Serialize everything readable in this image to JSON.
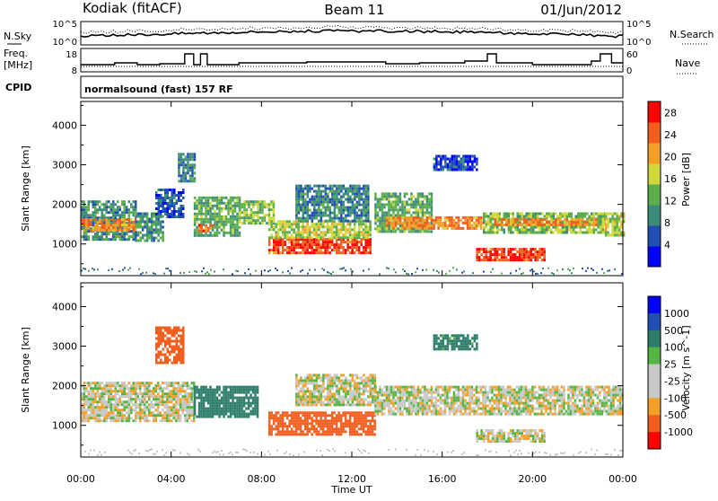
{
  "header": {
    "radar": "Kodiak (fitACF)",
    "beam": "Beam 11",
    "date": "01/Jun/2012"
  },
  "top_panels": {
    "nsky_label": "N.Sky",
    "nsearch_label": "N.Search",
    "noise_ticks_left": [
      "10^5",
      "10^0"
    ],
    "noise_ticks_right": [
      "10^5",
      "10^0"
    ],
    "freq_label_1": "Freq.",
    "freq_label_2": "[MHz]",
    "freq_ticks": [
      "18",
      "8"
    ],
    "nave_label": "Nave",
    "nave_ticks": [
      "60",
      "0"
    ],
    "cpid_label": "CPID",
    "cpid_text": "normalsound (fast) 157 RF"
  },
  "colors": {
    "power_scale": [
      "#0000ff",
      "#1f4fb4",
      "#3b8c78",
      "#5cae4a",
      "#cfd83c",
      "#f3a02a",
      "#f35d1d",
      "#ff0000"
    ],
    "velocity_scale": [
      "#ff0000",
      "#f35d1d",
      "#f3a02a",
      "#c8c8c8",
      "#c8c8c8",
      "#55b544",
      "#2e7d6a",
      "#1f4fb4",
      "#0000ff"
    ]
  },
  "chart_data": [
    {
      "type": "heatmap",
      "name": "power",
      "xlabel": "Time UT",
      "ylabel": "Slant Range [km]",
      "x_ticks": [
        "00:00",
        "04:00",
        "08:00",
        "12:00",
        "16:00",
        "20:00",
        "00:00"
      ],
      "y_ticks": [
        1000,
        2000,
        3000,
        4000
      ],
      "ylim": [
        200,
        4600
      ],
      "xlim_hours": [
        0,
        24
      ],
      "colorbar_label": "Power [dB]",
      "colorbar_ticks": [
        4,
        8,
        12,
        16,
        20,
        24,
        28
      ],
      "colorbar_range": [
        0,
        30
      ],
      "regions": [
        {
          "t0": 0.0,
          "t1": 2.4,
          "r0": 1100,
          "r1": 2100,
          "level": 10
        },
        {
          "t0": 0.0,
          "t1": 2.4,
          "r0": 1350,
          "r1": 1650,
          "level": 22
        },
        {
          "t0": 2.4,
          "t1": 3.6,
          "r0": 1100,
          "r1": 1800,
          "level": 10
        },
        {
          "t0": 3.3,
          "t1": 4.5,
          "r0": 1700,
          "r1": 2400,
          "level": 6
        },
        {
          "t0": 4.3,
          "t1": 5.0,
          "r0": 2600,
          "r1": 3300,
          "level": 8
        },
        {
          "t0": 5.0,
          "t1": 7.0,
          "r0": 1200,
          "r1": 2200,
          "level": 12
        },
        {
          "t0": 5.2,
          "t1": 5.8,
          "r0": 1300,
          "r1": 1500,
          "level": 24
        },
        {
          "t0": 7.0,
          "t1": 8.5,
          "r0": 1500,
          "r1": 2100,
          "level": 14
        },
        {
          "t0": 8.3,
          "t1": 12.8,
          "r0": 800,
          "r1": 1150,
          "level": 26
        },
        {
          "t0": 8.3,
          "t1": 12.8,
          "r0": 1150,
          "r1": 1600,
          "level": 16
        },
        {
          "t0": 9.5,
          "t1": 12.7,
          "r0": 1600,
          "r1": 2500,
          "level": 9
        },
        {
          "t0": 13.0,
          "t1": 15.5,
          "r0": 1300,
          "r1": 2300,
          "level": 12
        },
        {
          "t0": 13.5,
          "t1": 17.8,
          "r0": 1400,
          "r1": 1700,
          "level": 22
        },
        {
          "t0": 15.6,
          "t1": 17.5,
          "r0": 2900,
          "r1": 3250,
          "level": 5
        },
        {
          "t0": 17.8,
          "t1": 23.2,
          "r0": 1300,
          "r1": 1800,
          "level": 14
        },
        {
          "t0": 18.3,
          "t1": 22.8,
          "r0": 1450,
          "r1": 1650,
          "level": 22
        },
        {
          "t0": 17.5,
          "t1": 20.5,
          "r0": 600,
          "r1": 900,
          "level": 26
        },
        {
          "t0": 23.2,
          "t1": 24.0,
          "r0": 1200,
          "r1": 1800,
          "level": 16
        }
      ]
    },
    {
      "type": "heatmap",
      "name": "velocity",
      "xlabel": "Time UT",
      "ylabel": "Slant Range [km]",
      "x_ticks": [
        "00:00",
        "04:00",
        "08:00",
        "12:00",
        "16:00",
        "20:00",
        "00:00"
      ],
      "y_ticks": [
        1000,
        2000,
        3000,
        4000
      ],
      "ylim": [
        200,
        4600
      ],
      "xlim_hours": [
        0,
        24
      ],
      "colorbar_label": "Velocity [m s^-1]",
      "colorbar_ticks": [
        1000,
        500,
        100,
        25,
        -25,
        -100,
        -500,
        -1000
      ],
      "regions": [
        {
          "t0": 0.0,
          "t1": 5.0,
          "r0": 1100,
          "r1": 2100,
          "v": 0
        },
        {
          "t0": 3.3,
          "t1": 4.5,
          "r0": 2600,
          "r1": 3500,
          "v": -300
        },
        {
          "t0": 5.0,
          "t1": 7.8,
          "r0": 1200,
          "r1": 2000,
          "v": 300
        },
        {
          "t0": 8.3,
          "t1": 13.0,
          "r0": 800,
          "r1": 1350,
          "v": -300
        },
        {
          "t0": 9.5,
          "t1": 13.0,
          "r0": 1500,
          "r1": 2300,
          "v": 0
        },
        {
          "t0": 13.0,
          "t1": 24.0,
          "r0": 1300,
          "r1": 2000,
          "v": 0
        },
        {
          "t0": 15.6,
          "t1": 17.5,
          "r0": 2900,
          "r1": 3300,
          "v": 150
        },
        {
          "t0": 17.5,
          "t1": 20.5,
          "r0": 600,
          "r1": 900,
          "v": 0
        }
      ]
    }
  ]
}
